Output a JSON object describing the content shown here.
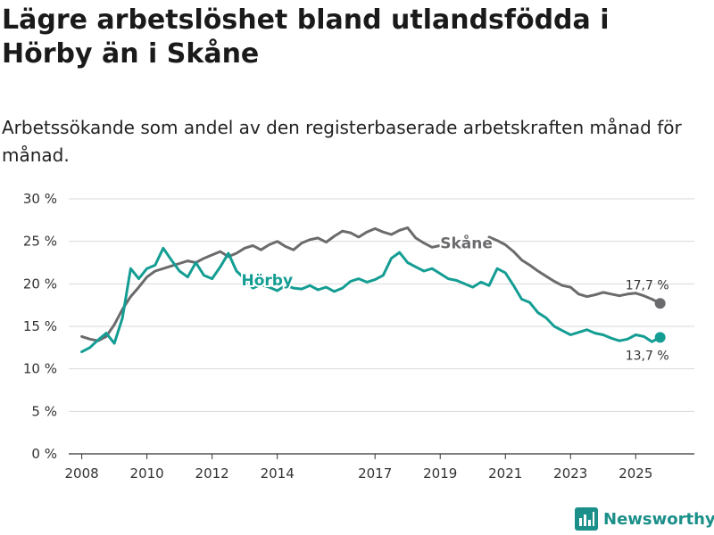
{
  "header": {
    "title": "Lägre arbetslöshet bland utlandsfödda i Hörby än i Skåne",
    "subtitle": "Arbetssökande som andel av den registerbaserade arbetskraften månad för månad."
  },
  "brand": {
    "name": "Newsworthy"
  },
  "colors": {
    "horby": "#149d93",
    "skane": "#6b6b6e",
    "grid": "#d9d9d9",
    "axis": "#333333"
  },
  "chart_data": {
    "type": "line",
    "title": "Lägre arbetslöshet bland utlandsfödda i Hörby än i Skåne",
    "subtitle": "Arbetssökande som andel av den registerbaserade arbetskraften månad för månad.",
    "xlabel": "",
    "ylabel": "",
    "xlim": [
      2007.6,
      2026.8
    ],
    "ylim": [
      0,
      30
    ],
    "grid": true,
    "y_ticks": [
      0,
      5,
      10,
      15,
      20,
      25,
      30
    ],
    "y_tick_labels": [
      "0 %",
      "5 %",
      "10 %",
      "15 %",
      "20 %",
      "25 %",
      "30 %"
    ],
    "x_ticks": [
      2008,
      2010,
      2012,
      2014,
      2017,
      2019,
      2021,
      2023,
      2025
    ],
    "x_tick_labels": [
      "2008",
      "2010",
      "2012",
      "2014",
      "2017",
      "2019",
      "2021",
      "2023",
      "2025"
    ],
    "series": [
      {
        "name": "Skåne",
        "color": "#6b6b6e",
        "end_label": "17,7 %",
        "segments": [
          {
            "x": [
              2008.0,
              2008.25,
              2008.5,
              2008.75,
              2009.0,
              2009.25,
              2009.5,
              2009.75,
              2010.0,
              2010.25,
              2010.5,
              2010.75,
              2011.0,
              2011.25,
              2011.5,
              2011.75,
              2012.0,
              2012.25,
              2012.5,
              2012.75,
              2013.0,
              2013.25,
              2013.5,
              2013.75,
              2014.0,
              2014.25,
              2014.5,
              2014.75,
              2015.0,
              2015.25,
              2015.5,
              2015.75,
              2016.0,
              2016.25,
              2016.5,
              2016.75,
              2017.0,
              2017.25,
              2017.5,
              2017.75,
              2018.0,
              2018.25,
              2018.5,
              2018.75,
              2019.0,
              2019.25
            ],
            "y": [
              13.8,
              13.5,
              13.3,
              13.8,
              15.2,
              17.0,
              18.5,
              19.6,
              20.8,
              21.5,
              21.8,
              22.1,
              22.4,
              22.7,
              22.5,
              23.0,
              23.4,
              23.8,
              23.2,
              23.6,
              24.2,
              24.5,
              24.0,
              24.6,
              25.0,
              24.4,
              24.0,
              24.8,
              25.2,
              25.4,
              24.9,
              25.6,
              26.2,
              26.0,
              25.5,
              26.1,
              26.5,
              26.1,
              25.8,
              26.3,
              26.6,
              25.4,
              24.8,
              24.3,
              24.5,
              24.6
            ]
          },
          {
            "x": [
              2020.5,
              2020.75,
              2021.0,
              2021.25,
              2021.5,
              2021.75,
              2022.0,
              2022.25,
              2022.5,
              2022.75,
              2023.0,
              2023.25,
              2023.5,
              2023.75,
              2024.0,
              2024.25,
              2024.5,
              2024.75,
              2025.0,
              2025.25,
              2025.5,
              2025.75
            ],
            "y": [
              25.5,
              25.1,
              24.6,
              23.8,
              22.8,
              22.2,
              21.5,
              20.9,
              20.3,
              19.8,
              19.6,
              18.8,
              18.5,
              18.7,
              19.0,
              18.8,
              18.6,
              18.8,
              18.9,
              18.6,
              18.2,
              17.7
            ]
          }
        ]
      },
      {
        "name": "Hörby",
        "color": "#149d93",
        "end_label": "13,7 %",
        "segments": [
          {
            "x": [
              2008.0,
              2008.25,
              2008.5,
              2008.75,
              2009.0,
              2009.25,
              2009.5,
              2009.75,
              2010.0,
              2010.25,
              2010.5,
              2010.75,
              2011.0,
              2011.25,
              2011.5,
              2011.75,
              2012.0,
              2012.25,
              2012.5,
              2012.75,
              2013.0,
              2013.25,
              2013.5,
              2013.75,
              2014.0,
              2014.25,
              2014.5,
              2014.75,
              2015.0,
              2015.25,
              2015.5,
              2015.75,
              2016.0,
              2016.25,
              2016.5,
              2016.75,
              2017.0,
              2017.25,
              2017.5,
              2017.75,
              2018.0,
              2018.25,
              2018.5,
              2018.75,
              2019.0,
              2019.25,
              2019.5,
              2019.75,
              2020.0,
              2020.25,
              2020.5,
              2020.75,
              2021.0,
              2021.25,
              2021.5,
              2021.75,
              2022.0,
              2022.25,
              2022.5,
              2022.75,
              2023.0,
              2023.25,
              2023.5,
              2023.75,
              2024.0,
              2024.25,
              2024.5,
              2024.75,
              2025.0,
              2025.25,
              2025.5,
              2025.75
            ],
            "y": [
              12.0,
              12.5,
              13.4,
              14.2,
              13.0,
              16.0,
              21.8,
              20.6,
              21.8,
              22.2,
              24.2,
              22.8,
              21.5,
              20.8,
              22.5,
              21.0,
              20.6,
              22.0,
              23.6,
              21.5,
              20.6,
              19.5,
              19.9,
              19.6,
              19.2,
              19.8,
              19.5,
              19.4,
              19.8,
              19.3,
              19.6,
              19.1,
              19.5,
              20.3,
              20.6,
              20.2,
              20.5,
              21.0,
              23.0,
              23.7,
              22.5,
              22.0,
              21.5,
              21.8,
              21.2,
              20.6,
              20.4,
              20.0,
              19.6,
              20.2,
              19.8,
              21.8,
              21.3,
              19.8,
              18.2,
              17.8,
              16.6,
              16.0,
              15.0,
              14.5,
              14.0,
              14.3,
              14.6,
              14.2,
              14.0,
              13.6,
              13.3,
              13.5,
              14.0,
              13.8,
              13.2,
              13.7
            ]
          }
        ]
      }
    ]
  }
}
